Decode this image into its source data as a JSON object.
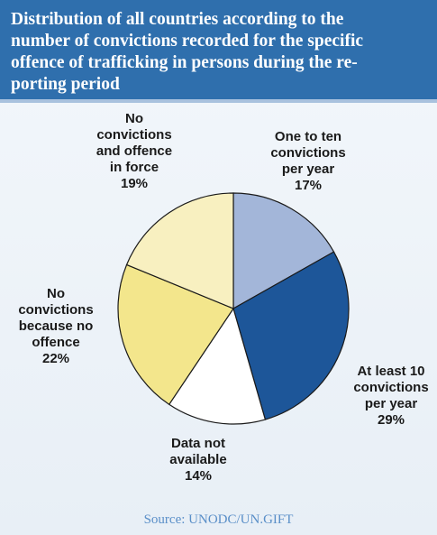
{
  "chart_data": {
    "type": "pie",
    "title_lines": [
      "Distribution of all countries according to the",
      "number of convictions recorded for the specific",
      "offence of trafficking in persons during the re-",
      "porting period"
    ],
    "slices": [
      {
        "key": "one_to_ten",
        "label_lines": [
          "One to ten",
          "convictions",
          "per year"
        ],
        "value": 17,
        "value_label": "17%",
        "color": "#a3b6d9"
      },
      {
        "key": "at_least_10",
        "label_lines": [
          "At least 10",
          "convictions",
          "per year"
        ],
        "value": 29,
        "value_label": "29%",
        "color": "#1d5699"
      },
      {
        "key": "not_available",
        "label_lines": [
          "Data not",
          "available"
        ],
        "value": 14,
        "value_label": "14%",
        "color": "#ffffff"
      },
      {
        "key": "no_conv_no_offence",
        "label_lines": [
          "No",
          "convictions",
          "because no",
          "offence"
        ],
        "value": 22,
        "value_label": "22%",
        "color": "#f3e68c"
      },
      {
        "key": "no_conv_offence",
        "label_lines": [
          "No",
          "convictions",
          "and offence",
          "in force"
        ],
        "value": 19,
        "value_label": "19%",
        "color": "#f8f0c0"
      }
    ],
    "source": "Source: UNODC/UN.GIFT"
  }
}
